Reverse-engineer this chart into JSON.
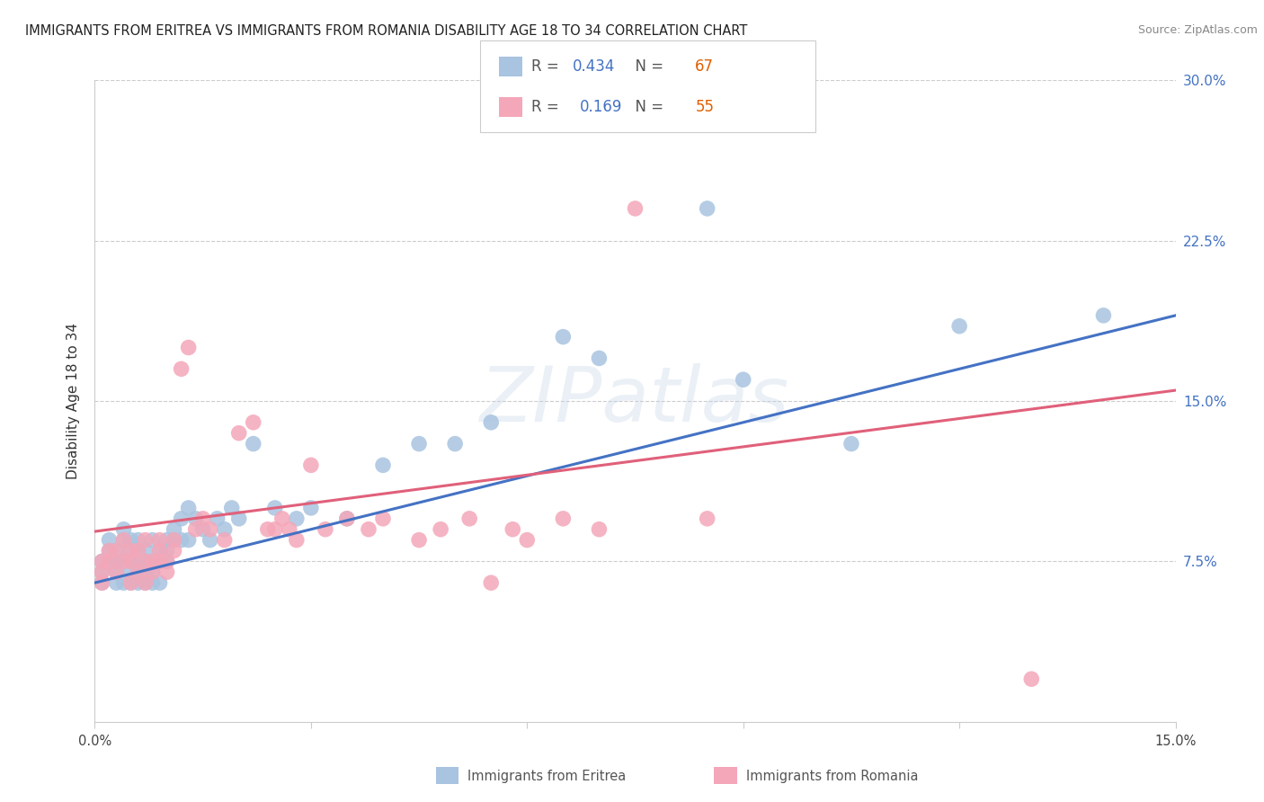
{
  "title": "IMMIGRANTS FROM ERITREA VS IMMIGRANTS FROM ROMANIA DISABILITY AGE 18 TO 34 CORRELATION CHART",
  "source": "Source: ZipAtlas.com",
  "ylabel": "Disability Age 18 to 34",
  "xlim": [
    0.0,
    0.15
  ],
  "ylim": [
    0.0,
    0.3
  ],
  "eritrea_color": "#a8c4e0",
  "romania_color": "#f4a7b9",
  "eritrea_line_color": "#4472c4",
  "romania_line_color": "#e0607a",
  "eritrea_R": 0.434,
  "eritrea_N": 67,
  "romania_R": 0.169,
  "romania_N": 55,
  "N_color": "#e06000",
  "background_color": "#ffffff",
  "grid_color": "#cccccc",
  "eritrea_x": [
    0.001,
    0.001,
    0.001,
    0.002,
    0.002,
    0.002,
    0.003,
    0.003,
    0.003,
    0.003,
    0.004,
    0.004,
    0.004,
    0.004,
    0.005,
    0.005,
    0.005,
    0.005,
    0.005,
    0.006,
    0.006,
    0.006,
    0.006,
    0.006,
    0.007,
    0.007,
    0.007,
    0.007,
    0.008,
    0.008,
    0.008,
    0.008,
    0.009,
    0.009,
    0.009,
    0.01,
    0.01,
    0.01,
    0.011,
    0.011,
    0.012,
    0.012,
    0.013,
    0.013,
    0.014,
    0.015,
    0.016,
    0.017,
    0.018,
    0.019,
    0.02,
    0.022,
    0.025,
    0.028,
    0.03,
    0.035,
    0.04,
    0.045,
    0.05,
    0.055,
    0.065,
    0.07,
    0.085,
    0.09,
    0.105,
    0.12,
    0.14
  ],
  "eritrea_y": [
    0.07,
    0.075,
    0.065,
    0.08,
    0.085,
    0.075,
    0.07,
    0.075,
    0.065,
    0.08,
    0.085,
    0.075,
    0.065,
    0.09,
    0.07,
    0.08,
    0.085,
    0.075,
    0.065,
    0.07,
    0.075,
    0.085,
    0.08,
    0.065,
    0.075,
    0.07,
    0.065,
    0.08,
    0.085,
    0.075,
    0.07,
    0.065,
    0.08,
    0.075,
    0.065,
    0.085,
    0.08,
    0.075,
    0.09,
    0.085,
    0.095,
    0.085,
    0.1,
    0.085,
    0.095,
    0.09,
    0.085,
    0.095,
    0.09,
    0.1,
    0.095,
    0.13,
    0.1,
    0.095,
    0.1,
    0.095,
    0.12,
    0.13,
    0.13,
    0.14,
    0.18,
    0.17,
    0.24,
    0.16,
    0.13,
    0.185,
    0.19
  ],
  "romania_x": [
    0.001,
    0.001,
    0.001,
    0.002,
    0.002,
    0.003,
    0.003,
    0.004,
    0.004,
    0.005,
    0.005,
    0.005,
    0.006,
    0.006,
    0.007,
    0.007,
    0.007,
    0.008,
    0.008,
    0.009,
    0.009,
    0.009,
    0.01,
    0.01,
    0.011,
    0.011,
    0.012,
    0.013,
    0.014,
    0.015,
    0.016,
    0.018,
    0.02,
    0.022,
    0.024,
    0.025,
    0.026,
    0.027,
    0.028,
    0.03,
    0.032,
    0.035,
    0.038,
    0.04,
    0.045,
    0.048,
    0.052,
    0.055,
    0.058,
    0.06,
    0.065,
    0.07,
    0.075,
    0.085,
    0.13
  ],
  "romania_y": [
    0.07,
    0.075,
    0.065,
    0.08,
    0.075,
    0.07,
    0.08,
    0.075,
    0.085,
    0.065,
    0.08,
    0.075,
    0.07,
    0.08,
    0.085,
    0.075,
    0.065,
    0.07,
    0.075,
    0.08,
    0.085,
    0.075,
    0.07,
    0.075,
    0.08,
    0.085,
    0.165,
    0.175,
    0.09,
    0.095,
    0.09,
    0.085,
    0.135,
    0.14,
    0.09,
    0.09,
    0.095,
    0.09,
    0.085,
    0.12,
    0.09,
    0.095,
    0.09,
    0.095,
    0.085,
    0.09,
    0.095,
    0.065,
    0.09,
    0.085,
    0.095,
    0.09,
    0.24,
    0.095,
    0.02
  ]
}
